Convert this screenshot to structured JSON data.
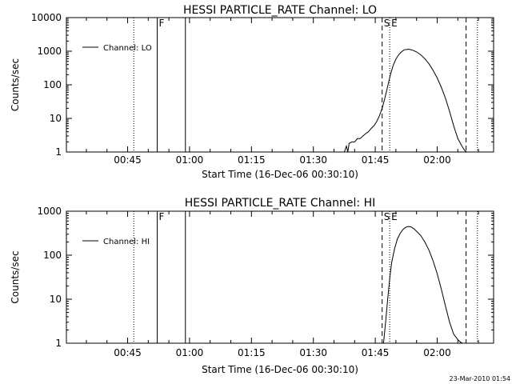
{
  "chart_data": [
    {
      "type": "line",
      "title": "HESSI PARTICLE_RATE Channel: LO",
      "xlabel": "Start Time (16-Dec-06 00:30:10)",
      "ylabel": "Counts/sec",
      "y_scale": "log",
      "ylim": [
        1,
        10000
      ],
      "xlim": [
        "00:30:10",
        "02:13:40"
      ],
      "x_ticks": [
        "00:45",
        "01:00",
        "01:15",
        "01:30",
        "01:45",
        "02:00"
      ],
      "y_ticks": [
        "1",
        "10",
        "100",
        "1000",
        "10000"
      ],
      "legend": {
        "position": "top-left",
        "entries": [
          "Channel: LO"
        ]
      },
      "markers": [
        {
          "time": "00:46:30",
          "style": "dotted",
          "label": ""
        },
        {
          "time": "00:52:10",
          "style": "solid",
          "label": "F"
        },
        {
          "time": "00:59:00",
          "style": "solid",
          "label": ""
        },
        {
          "time": "01:46:40",
          "style": "dashed",
          "label": "S"
        },
        {
          "time": "01:48:30",
          "style": "dotted",
          "label": "E"
        },
        {
          "time": "02:07:00",
          "style": "dashed",
          "label": ""
        },
        {
          "time": "02:09:45",
          "style": "dotted",
          "label": ""
        }
      ],
      "series": [
        {
          "name": "Channel: LO",
          "x": [
            "01:37:30",
            "01:38:00",
            "01:38:20",
            "01:38:40",
            "01:39:20",
            "01:40:00",
            "01:40:40",
            "01:41:20",
            "01:42:00",
            "01:42:40",
            "01:43:20",
            "01:44:00",
            "01:44:40",
            "01:45:20",
            "01:46:00",
            "01:46:40",
            "01:47:20",
            "01:48:00",
            "01:48:40",
            "01:49:20",
            "01:50:00",
            "01:50:40",
            "01:51:20",
            "01:52:00",
            "01:53:00",
            "01:54:00",
            "01:55:00",
            "01:56:00",
            "01:57:00",
            "01:58:00",
            "01:59:00",
            "02:00:00",
            "02:01:00",
            "02:02:00",
            "02:03:00",
            "02:04:00",
            "02:05:00",
            "02:06:00",
            "02:06:40",
            "02:07:10"
          ],
          "values": [
            1,
            1.5,
            1,
            1.8,
            2,
            2,
            2.5,
            2.5,
            3,
            3.5,
            4,
            5,
            6,
            8,
            12,
            20,
            40,
            90,
            200,
            380,
            580,
            780,
            950,
            1100,
            1150,
            1080,
            950,
            780,
            600,
            420,
            270,
            160,
            85,
            40,
            16,
            6,
            2.5,
            1.5,
            1.1,
            1
          ]
        }
      ]
    },
    {
      "type": "line",
      "title": "HESSI PARTICLE_RATE Channel: HI",
      "xlabel": "Start Time (16-Dec-06 00:30:10)",
      "ylabel": "Counts/sec",
      "y_scale": "log",
      "ylim": [
        1,
        1000
      ],
      "xlim": [
        "00:30:10",
        "02:13:40"
      ],
      "x_ticks": [
        "00:45",
        "01:00",
        "01:15",
        "01:30",
        "01:45",
        "02:00"
      ],
      "y_ticks": [
        "1",
        "10",
        "100",
        "1000"
      ],
      "legend": {
        "position": "top-left",
        "entries": [
          "Channel: HI"
        ]
      },
      "markers": [
        {
          "time": "00:46:30",
          "style": "dotted",
          "label": ""
        },
        {
          "time": "00:52:10",
          "style": "solid",
          "label": "F"
        },
        {
          "time": "00:59:00",
          "style": "solid",
          "label": ""
        },
        {
          "time": "01:46:40",
          "style": "dashed",
          "label": "S"
        },
        {
          "time": "01:48:30",
          "style": "dotted",
          "label": "E"
        },
        {
          "time": "02:07:00",
          "style": "dashed",
          "label": ""
        },
        {
          "time": "02:09:45",
          "style": "dotted",
          "label": ""
        }
      ],
      "series": [
        {
          "name": "Channel: HI",
          "x": [
            "01:47:00",
            "01:47:30",
            "01:48:00",
            "01:48:30",
            "01:49:00",
            "01:49:40",
            "01:50:20",
            "01:51:00",
            "01:51:40",
            "01:52:20",
            "01:53:00",
            "01:53:40",
            "01:54:20",
            "01:55:00",
            "01:56:00",
            "01:57:00",
            "01:58:00",
            "01:59:00",
            "02:00:00",
            "02:01:00",
            "02:02:00",
            "02:03:00",
            "02:04:00",
            "02:05:00",
            "02:05:40",
            "02:06:10"
          ],
          "values": [
            1,
            3,
            10,
            30,
            70,
            140,
            230,
            310,
            380,
            430,
            450,
            440,
            400,
            350,
            280,
            200,
            130,
            75,
            38,
            17,
            7,
            3,
            1.6,
            1.2,
            1.05,
            1
          ]
        }
      ]
    }
  ],
  "footer": {
    "timestamp": "23-Mar-2010 01:54"
  }
}
